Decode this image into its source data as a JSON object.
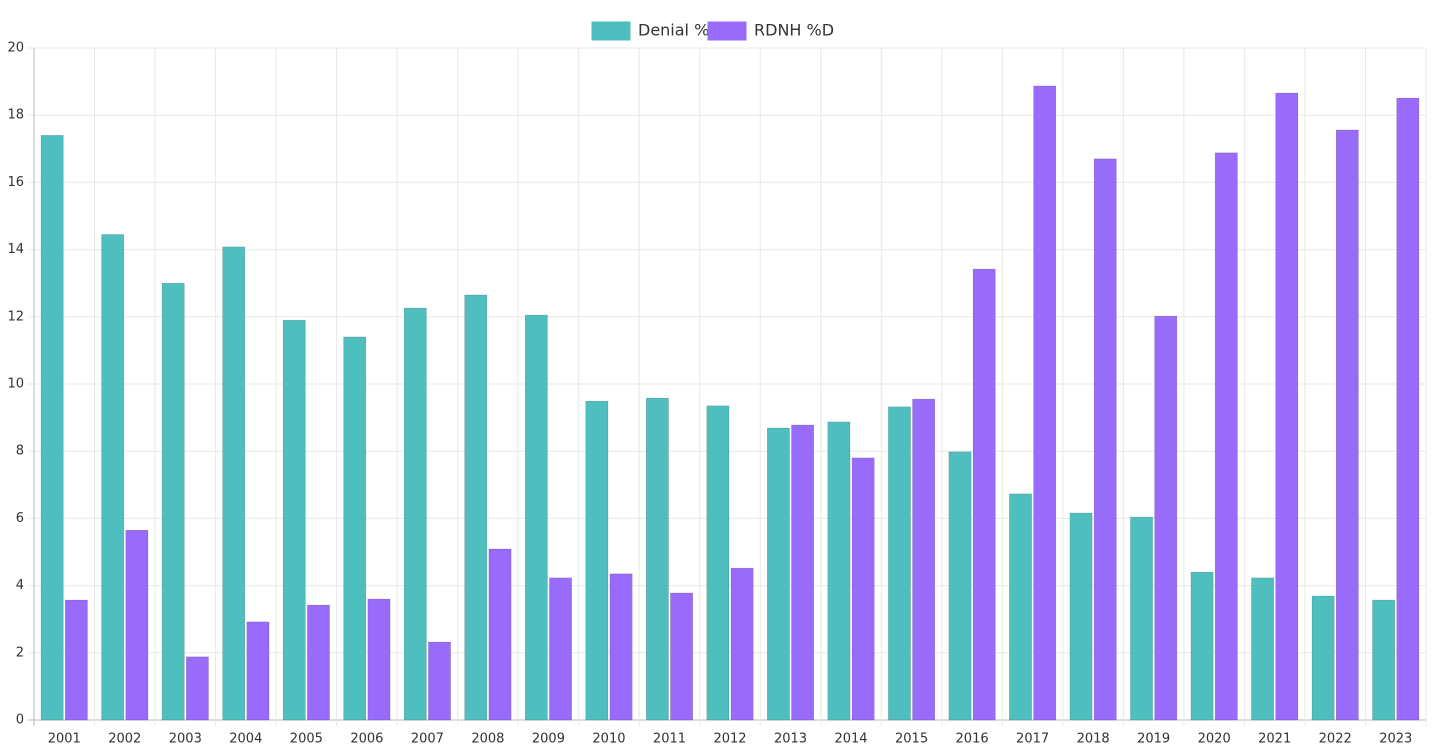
{
  "chart_data": {
    "type": "bar",
    "categories": [
      "2001",
      "2002",
      "2003",
      "2004",
      "2005",
      "2006",
      "2007",
      "2008",
      "2009",
      "2010",
      "2011",
      "2012",
      "2013",
      "2014",
      "2015",
      "2016",
      "2017",
      "2018",
      "2019",
      "2020",
      "2021",
      "2022",
      "2023"
    ],
    "series": [
      {
        "name": "Denial %",
        "color": "#4fbebe",
        "values": [
          17.4,
          14.45,
          13.0,
          14.08,
          11.9,
          11.4,
          12.26,
          12.65,
          12.05,
          9.49,
          9.58,
          9.35,
          8.69,
          8.87,
          9.32,
          7.98,
          6.73,
          6.16,
          6.04,
          4.4,
          4.23,
          3.69,
          3.57
        ]
      },
      {
        "name": "RDNH %D",
        "color": "#996bfa",
        "values": [
          3.57,
          5.65,
          1.88,
          2.92,
          3.42,
          3.6,
          2.32,
          5.09,
          4.23,
          4.35,
          3.78,
          4.52,
          8.78,
          7.8,
          9.55,
          13.42,
          18.87,
          16.7,
          12.02,
          16.88,
          18.66,
          17.56,
          18.51
        ]
      }
    ],
    "ylim": [
      0,
      20
    ],
    "yticks": [
      0,
      2,
      4,
      6,
      8,
      10,
      12,
      14,
      16,
      18,
      20
    ],
    "grid": true,
    "legend": "top"
  }
}
